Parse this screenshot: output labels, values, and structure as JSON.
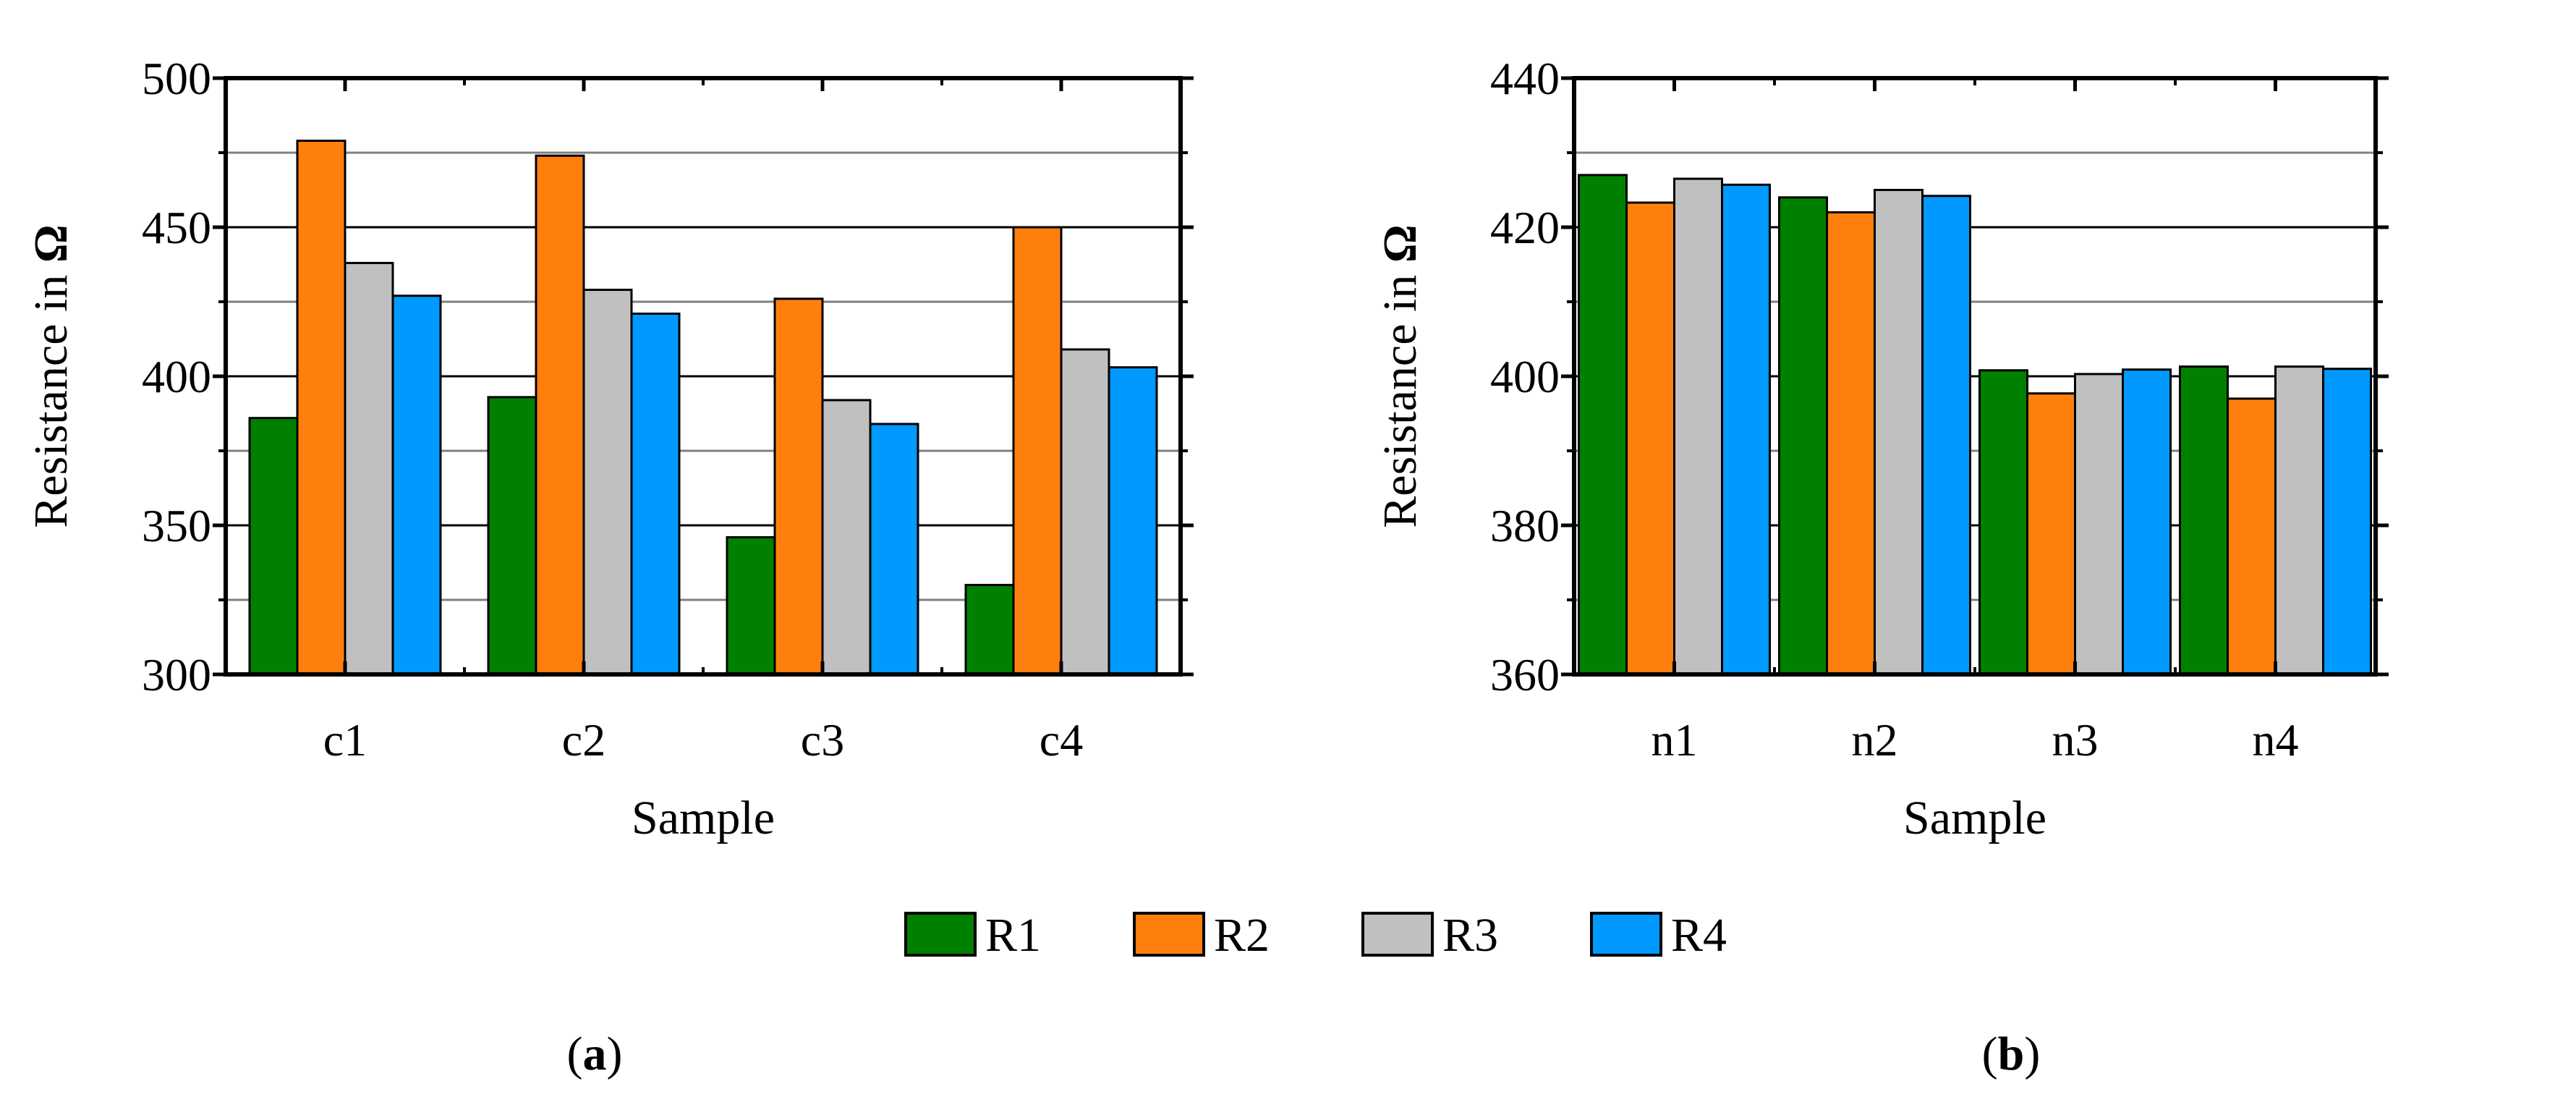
{
  "legend": [
    {
      "name": "R1",
      "color": "#008000"
    },
    {
      "name": "R2",
      "color": "#ff7f0e"
    },
    {
      "name": "R3",
      "color": "#c0c0c0"
    },
    {
      "name": "R4",
      "color": "#0099ff"
    }
  ],
  "panels": {
    "a": {
      "label_open": "(",
      "label_letter": "a",
      "label_close": ")"
    },
    "b": {
      "label_open": "(",
      "label_letter": "b",
      "label_close": ")"
    }
  },
  "chart_data": [
    {
      "type": "bar",
      "panel": "a",
      "categories": [
        "c1",
        "c2",
        "c3",
        "c4"
      ],
      "series": [
        {
          "name": "R1",
          "values": [
            386,
            393,
            346,
            330
          ]
        },
        {
          "name": "R2",
          "values": [
            479,
            474,
            426,
            450
          ]
        },
        {
          "name": "R3",
          "values": [
            438,
            429,
            392,
            409
          ]
        },
        {
          "name": "R4",
          "values": [
            427,
            421,
            384,
            403
          ]
        }
      ],
      "xlabel": "Sample",
      "ylabel_prefix": "Resistance in ",
      "ylabel_unit": "Ω",
      "ylim": [
        300,
        500
      ],
      "yticks": [
        300,
        350,
        400,
        450,
        500
      ],
      "minor_grid": [
        325,
        375,
        425,
        475
      ],
      "grid": true
    },
    {
      "type": "bar",
      "panel": "b",
      "categories": [
        "n1",
        "n2",
        "n3",
        "n4"
      ],
      "series": [
        {
          "name": "R1",
          "values": [
            427,
            424,
            400.8,
            401.3
          ]
        },
        {
          "name": "R2",
          "values": [
            423.3,
            422,
            397.7,
            397
          ]
        },
        {
          "name": "R3",
          "values": [
            426.5,
            425,
            400.3,
            401.3
          ]
        },
        {
          "name": "R4",
          "values": [
            425.7,
            424.2,
            400.9,
            401
          ]
        }
      ],
      "xlabel": "Sample",
      "ylabel_prefix": "Resistance in ",
      "ylabel_unit": "Ω",
      "ylim": [
        360,
        440
      ],
      "yticks": [
        360,
        380,
        400,
        420,
        440
      ],
      "minor_grid": [
        370,
        390,
        410,
        430
      ],
      "grid": true
    }
  ]
}
